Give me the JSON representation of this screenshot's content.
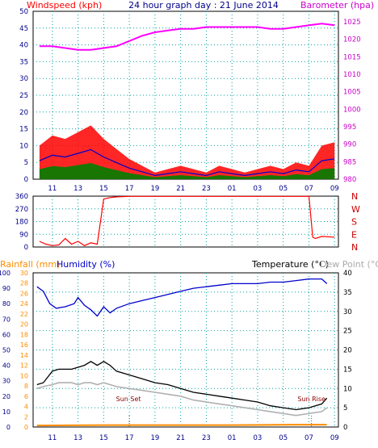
{
  "colors": {
    "wind_speed": "#ff0000",
    "wind_avg": "#0000cc",
    "wind_gust_base": "#008000",
    "barometer": "#ff00ff",
    "direction": "#ff0000",
    "rainfall": "#ff8c00",
    "humidity": "#0000cc",
    "temperature": "#000000",
    "dew_point": "#b0b0b0",
    "frame": "#000000",
    "grid": "#00a0a0"
  },
  "header": {
    "left_title": "Windspeed (kph)",
    "center_title": "24 hour graph day : 21 June 2014",
    "right_title": "Barometer (hpa)"
  },
  "x_ticks": [
    "11",
    "13",
    "15",
    "17",
    "19",
    "21",
    "23",
    "01",
    "03",
    "05",
    "07",
    "09"
  ],
  "chart_data": [
    {
      "type": "line",
      "name": "wind-barometer",
      "xlabel": "",
      "ylabel": "Windspeed (kph)",
      "ylim": [
        0,
        50
      ],
      "y_ticks": [
        "0",
        "5",
        "10",
        "15",
        "20",
        "25",
        "30",
        "35",
        "40",
        "45",
        "50"
      ],
      "y2label": "Barometer (hpa)",
      "y2lim": [
        980,
        1028
      ],
      "y2_ticks": [
        "980",
        "985",
        "990",
        "995",
        "1000",
        "1005",
        "1010",
        "1015",
        "1020",
        "1025"
      ],
      "series": [
        {
          "name": "Windspeed (kph)",
          "points": [
            [
              10,
              10
            ],
            [
              11,
              13
            ],
            [
              12,
              12
            ],
            [
              13,
              14
            ],
            [
              14,
              16
            ],
            [
              15,
              12
            ],
            [
              16,
              9
            ],
            [
              17,
              6
            ],
            [
              18,
              4
            ],
            [
              19,
              2
            ],
            [
              20,
              3
            ],
            [
              21,
              4
            ],
            [
              22,
              3
            ],
            [
              23,
              2
            ],
            [
              24,
              4
            ],
            [
              25,
              3
            ],
            [
              26,
              2
            ],
            [
              27,
              3
            ],
            [
              28,
              4
            ],
            [
              29,
              3
            ],
            [
              30,
              5
            ],
            [
              31,
              4
            ],
            [
              32,
              10
            ],
            [
              33,
              11
            ]
          ]
        },
        {
          "name": "Barometer (hpa)",
          "points": [
            [
              10,
              1018
            ],
            [
              11,
              1018
            ],
            [
              12,
              1017.5
            ],
            [
              13,
              1017
            ],
            [
              14,
              1017
            ],
            [
              15,
              1017.5
            ],
            [
              16,
              1018
            ],
            [
              17,
              1019.5
            ],
            [
              18,
              1021
            ],
            [
              19,
              1022
            ],
            [
              20,
              1022.5
            ],
            [
              21,
              1023
            ],
            [
              22,
              1023
            ],
            [
              23,
              1023.5
            ],
            [
              24,
              1023.5
            ],
            [
              25,
              1023.5
            ],
            [
              26,
              1023.5
            ],
            [
              27,
              1023.5
            ],
            [
              28,
              1023
            ],
            [
              29,
              1023
            ],
            [
              30,
              1023.5
            ],
            [
              31,
              1024
            ],
            [
              32,
              1024.5
            ],
            [
              33,
              1024
            ]
          ]
        }
      ]
    },
    {
      "type": "line",
      "name": "wind-direction",
      "ylim": [
        0,
        360
      ],
      "y_ticks": [
        "0",
        "90",
        "180",
        "270",
        "360"
      ],
      "compass": [
        "N",
        "W",
        "S",
        "E",
        "N"
      ],
      "series": [
        {
          "name": "Direction",
          "points": [
            [
              10,
              40
            ],
            [
              10.5,
              20
            ],
            [
              11,
              10
            ],
            [
              11.5,
              15
            ],
            [
              12,
              60
            ],
            [
              12.5,
              20
            ],
            [
              13,
              40
            ],
            [
              13.5,
              10
            ],
            [
              14,
              30
            ],
            [
              14.5,
              20
            ],
            [
              15,
              340
            ],
            [
              15.5,
              350
            ],
            [
              16,
              355
            ],
            [
              17,
              358
            ],
            [
              18,
              358
            ],
            [
              19,
              358
            ],
            [
              20,
              358
            ],
            [
              21,
              358
            ],
            [
              22,
              358
            ],
            [
              23,
              358
            ],
            [
              24,
              358
            ],
            [
              25,
              358
            ],
            [
              26,
              358
            ],
            [
              27,
              358
            ],
            [
              28,
              358
            ],
            [
              29,
              358
            ],
            [
              30,
              358
            ],
            [
              31,
              358
            ],
            [
              31.3,
              70
            ],
            [
              31.5,
              60
            ],
            [
              32,
              75
            ],
            [
              33,
              70
            ]
          ]
        }
      ]
    },
    {
      "type": "line",
      "name": "temperature-humidity",
      "ylim": [
        0,
        100
      ],
      "y_ticks": [
        "0",
        "10",
        "20",
        "30",
        "40",
        "50",
        "60",
        "70",
        "80",
        "90",
        "100"
      ],
      "y_mid_ticks": [
        "0",
        "2",
        "4",
        "6",
        "8",
        "10",
        "12",
        "14",
        "16",
        "18",
        "20",
        "22",
        "24",
        "26",
        "28",
        "30"
      ],
      "y2lim": [
        0,
        40
      ],
      "y2_ticks": [
        "0",
        "5",
        "10",
        "15",
        "20",
        "25",
        "30",
        "35",
        "40"
      ],
      "labels": {
        "rainfall": "Rainfall (mm)",
        "humidity": "Humidity (%)",
        "temperature": "Temperature (°C)",
        "dew_point": "Dew Point (°C)",
        "sun_set": "Sun Set",
        "sun_rise": "Sun Rise"
      },
      "series": [
        {
          "name": "Humidity (%)",
          "points": [
            [
              9.8,
              91
            ],
            [
              10.3,
              88
            ],
            [
              10.8,
              80
            ],
            [
              11.3,
              77
            ],
            [
              12,
              78
            ],
            [
              12.7,
              80
            ],
            [
              13,
              84
            ],
            [
              13.5,
              79
            ],
            [
              14,
              76
            ],
            [
              14.5,
              72
            ],
            [
              15,
              78
            ],
            [
              15.5,
              74
            ],
            [
              16,
              77
            ],
            [
              17,
              80
            ],
            [
              18,
              82
            ],
            [
              19,
              84
            ],
            [
              20,
              86
            ],
            [
              21,
              88
            ],
            [
              22,
              90
            ],
            [
              23,
              91
            ],
            [
              24,
              92
            ],
            [
              25,
              93
            ],
            [
              26,
              93
            ],
            [
              27,
              93
            ],
            [
              28,
              94
            ],
            [
              29,
              94
            ],
            [
              30,
              95
            ],
            [
              31,
              96
            ],
            [
              32,
              96
            ],
            [
              32.4,
              93
            ]
          ]
        },
        {
          "name": "Temperature (°C)",
          "points": [
            [
              9.8,
              11
            ],
            [
              10.3,
              11.5
            ],
            [
              11,
              14.5
            ],
            [
              11.5,
              15
            ],
            [
              12.5,
              15
            ],
            [
              13,
              15.5
            ],
            [
              13.5,
              16
            ],
            [
              14,
              17
            ],
            [
              14.5,
              16
            ],
            [
              15,
              17
            ],
            [
              15.5,
              16
            ],
            [
              16,
              14.5
            ],
            [
              17,
              13.5
            ],
            [
              18,
              12.5
            ],
            [
              19,
              11.5
            ],
            [
              20,
              11
            ],
            [
              21,
              10
            ],
            [
              22,
              9
            ],
            [
              23,
              8.5
            ],
            [
              24,
              8
            ],
            [
              25,
              7.5
            ],
            [
              26,
              7
            ],
            [
              27,
              6.5
            ],
            [
              28,
              5.5
            ],
            [
              29,
              5
            ],
            [
              30,
              4.5
            ],
            [
              31,
              5
            ],
            [
              32,
              6
            ],
            [
              32.4,
              7.5
            ]
          ]
        },
        {
          "name": "Dew Point (°C)",
          "points": [
            [
              9.8,
              10
            ],
            [
              10.3,
              10.5
            ],
            [
              11,
              11
            ],
            [
              11.5,
              11.5
            ],
            [
              12.5,
              11.5
            ],
            [
              13,
              11
            ],
            [
              13.5,
              11.5
            ],
            [
              14,
              11.5
            ],
            [
              14.5,
              11
            ],
            [
              15,
              11.5
            ],
            [
              15.5,
              11
            ],
            [
              16,
              10.5
            ],
            [
              17,
              10
            ],
            [
              18,
              9.5
            ],
            [
              19,
              9
            ],
            [
              20,
              8.5
            ],
            [
              21,
              8
            ],
            [
              22,
              7
            ],
            [
              23,
              6.5
            ],
            [
              24,
              6
            ],
            [
              25,
              5.5
            ],
            [
              26,
              5
            ],
            [
              27,
              4.5
            ],
            [
              28,
              4
            ],
            [
              29,
              3.5
            ],
            [
              30,
              3
            ],
            [
              31,
              3.5
            ],
            [
              32,
              4
            ],
            [
              32.4,
              5
            ]
          ]
        },
        {
          "name": "Rainfall (mm)",
          "points": [
            [
              9.8,
              0.4
            ],
            [
              15,
              0.5
            ],
            [
              20,
              0.5
            ],
            [
              25,
              0.5
            ],
            [
              30,
              0.6
            ],
            [
              32.4,
              0.6
            ]
          ]
        }
      ]
    }
  ]
}
